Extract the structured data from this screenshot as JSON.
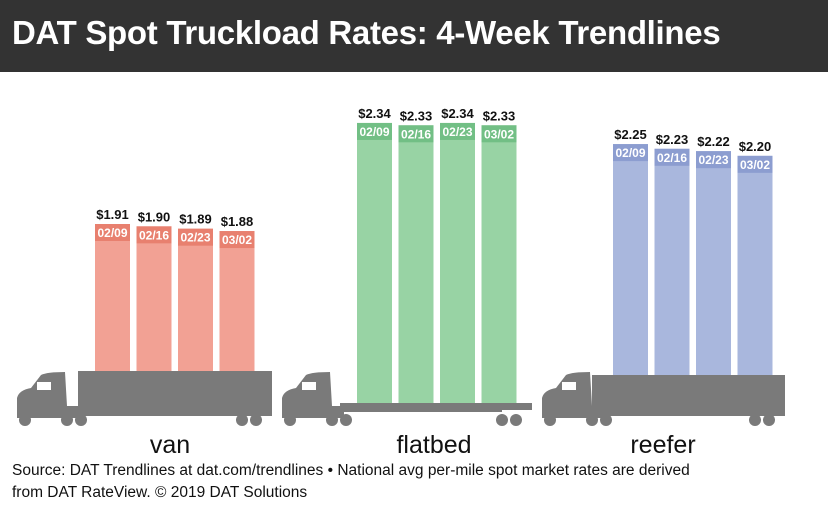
{
  "chart_data": {
    "type": "bar",
    "title": "DAT Spot Truckload Rates: 4-Week Trendlines",
    "categories": [
      "02/09",
      "02/16",
      "02/23",
      "03/02"
    ],
    "groups": [
      {
        "name": "van",
        "values": [
          1.91,
          1.9,
          1.89,
          1.88
        ],
        "labels": [
          "$1.91",
          "$1.90",
          "$1.89",
          "$1.88"
        ],
        "color": "#f2a194",
        "band_color": "#e8806f"
      },
      {
        "name": "flatbed",
        "values": [
          2.34,
          2.33,
          2.34,
          2.33
        ],
        "labels": [
          "$2.34",
          "$2.33",
          "$2.34",
          "$2.33"
        ],
        "color": "#98d3a4",
        "band_color": "#72bf85"
      },
      {
        "name": "reefer",
        "values": [
          2.25,
          2.23,
          2.22,
          2.2
        ],
        "labels": [
          "$2.25",
          "$2.23",
          "$2.22",
          "$2.20"
        ],
        "color": "#a9b7dd",
        "band_color": "#8c9dd0"
      }
    ],
    "truck_color": "#7a7a7a"
  },
  "footer": {
    "line1": "Source: DAT Trendlines at dat.com/trendlines • National avg per-mile spot market rates are derived",
    "line2": "from DAT RateView. © 2019 DAT Solutions"
  }
}
